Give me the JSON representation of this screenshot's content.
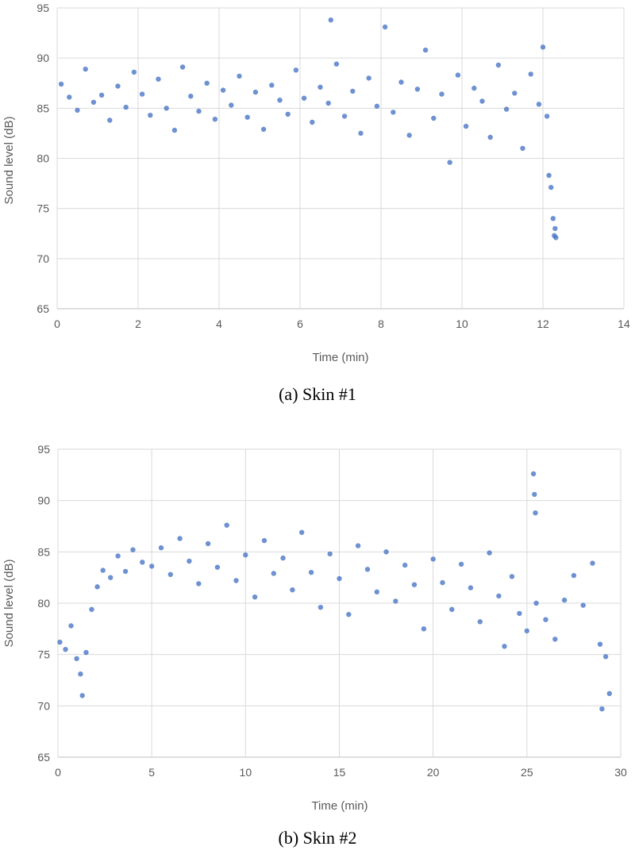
{
  "colors": {
    "series": "#4472c4",
    "grid": "#d9d9d9",
    "text": "#595959"
  },
  "chart_data": [
    {
      "type": "scatter",
      "caption": "(a)  Skin #1",
      "xlabel": "Time (min)",
      "ylabel": "Sound level (dB)",
      "xlim": [
        0,
        14
      ],
      "ylim": [
        65,
        95
      ],
      "xticks": [
        "0",
        "2",
        "4",
        "6",
        "8",
        "10",
        "12",
        "14"
      ],
      "yticks": [
        "65",
        "70",
        "75",
        "80",
        "85",
        "90",
        "95"
      ],
      "grid": true,
      "legend": "none",
      "series": [
        {
          "points": [
            [
              0.1,
              87.4
            ],
            [
              0.3,
              86.1
            ],
            [
              0.5,
              84.8
            ],
            [
              0.7,
              88.9
            ],
            [
              0.9,
              85.6
            ],
            [
              1.1,
              86.3
            ],
            [
              1.3,
              83.8
            ],
            [
              1.5,
              87.2
            ],
            [
              1.7,
              85.1
            ],
            [
              1.9,
              88.6
            ],
            [
              2.1,
              86.4
            ],
            [
              2.3,
              84.3
            ],
            [
              2.5,
              87.9
            ],
            [
              2.7,
              85.0
            ],
            [
              2.9,
              82.8
            ],
            [
              3.1,
              89.1
            ],
            [
              3.3,
              86.2
            ],
            [
              3.5,
              84.7
            ],
            [
              3.7,
              87.5
            ],
            [
              3.9,
              83.9
            ],
            [
              4.1,
              86.8
            ],
            [
              4.3,
              85.3
            ],
            [
              4.5,
              88.2
            ],
            [
              4.7,
              84.1
            ],
            [
              4.9,
              86.6
            ],
            [
              5.1,
              82.9
            ],
            [
              5.3,
              87.3
            ],
            [
              5.5,
              85.8
            ],
            [
              5.7,
              84.4
            ],
            [
              5.9,
              88.8
            ],
            [
              6.1,
              86.0
            ],
            [
              6.3,
              83.6
            ],
            [
              6.5,
              87.1
            ],
            [
              6.7,
              85.5
            ],
            [
              6.76,
              93.8
            ],
            [
              6.9,
              89.4
            ],
            [
              7.1,
              84.2
            ],
            [
              7.3,
              86.7
            ],
            [
              7.5,
              82.5
            ],
            [
              7.7,
              88.0
            ],
            [
              7.9,
              85.2
            ],
            [
              8.1,
              93.1
            ],
            [
              8.3,
              84.6
            ],
            [
              8.5,
              87.6
            ],
            [
              8.7,
              82.3
            ],
            [
              8.9,
              86.9
            ],
            [
              9.1,
              90.8
            ],
            [
              9.3,
              84.0
            ],
            [
              9.5,
              86.4
            ],
            [
              9.7,
              79.6
            ],
            [
              9.9,
              88.3
            ],
            [
              10.1,
              83.2
            ],
            [
              10.3,
              87.0
            ],
            [
              10.5,
              85.7
            ],
            [
              10.7,
              82.1
            ],
            [
              10.9,
              89.3
            ],
            [
              11.1,
              84.9
            ],
            [
              11.3,
              86.5
            ],
            [
              11.5,
              81.0
            ],
            [
              11.7,
              88.4
            ],
            [
              11.9,
              85.4
            ],
            [
              12.0,
              91.1
            ],
            [
              12.1,
              84.2
            ],
            [
              12.15,
              78.3
            ],
            [
              12.2,
              77.1
            ],
            [
              12.25,
              74.0
            ],
            [
              12.28,
              72.3
            ],
            [
              12.3,
              73.0
            ],
            [
              12.32,
              72.1
            ]
          ]
        }
      ]
    },
    {
      "type": "scatter",
      "caption": "(b)  Skin #2",
      "xlabel": "Time (min)",
      "ylabel": "Sound level (dB)",
      "xlim": [
        0,
        30
      ],
      "ylim": [
        65,
        95
      ],
      "xticks": [
        "0",
        "5",
        "10",
        "15",
        "20",
        "25",
        "30"
      ],
      "yticks": [
        "65",
        "70",
        "75",
        "80",
        "85",
        "90",
        "95"
      ],
      "grid": true,
      "legend": "none",
      "series": [
        {
          "points": [
            [
              0.1,
              76.2
            ],
            [
              0.4,
              75.5
            ],
            [
              0.7,
              77.8
            ],
            [
              1.0,
              74.6
            ],
            [
              1.2,
              73.1
            ],
            [
              1.3,
              71.0
            ],
            [
              1.5,
              75.2
            ],
            [
              1.8,
              79.4
            ],
            [
              2.1,
              81.6
            ],
            [
              2.4,
              83.2
            ],
            [
              2.8,
              82.5
            ],
            [
              3.2,
              84.6
            ],
            [
              3.6,
              83.1
            ],
            [
              4.0,
              85.2
            ],
            [
              4.5,
              84.0
            ],
            [
              5.0,
              83.6
            ],
            [
              5.5,
              85.4
            ],
            [
              6.0,
              82.8
            ],
            [
              6.5,
              86.3
            ],
            [
              7.0,
              84.1
            ],
            [
              7.5,
              81.9
            ],
            [
              8.0,
              85.8
            ],
            [
              8.5,
              83.5
            ],
            [
              9.0,
              87.6
            ],
            [
              9.5,
              82.2
            ],
            [
              10.0,
              84.7
            ],
            [
              10.5,
              80.6
            ],
            [
              11.0,
              86.1
            ],
            [
              11.5,
              82.9
            ],
            [
              12.0,
              84.4
            ],
            [
              12.5,
              81.3
            ],
            [
              13.0,
              86.9
            ],
            [
              13.5,
              83.0
            ],
            [
              14.0,
              79.6
            ],
            [
              14.5,
              84.8
            ],
            [
              15.0,
              82.4
            ],
            [
              15.5,
              78.9
            ],
            [
              16.0,
              85.6
            ],
            [
              16.5,
              83.3
            ],
            [
              17.0,
              81.1
            ],
            [
              17.5,
              85.0
            ],
            [
              18.0,
              80.2
            ],
            [
              18.5,
              83.7
            ],
            [
              19.0,
              81.8
            ],
            [
              19.5,
              77.5
            ],
            [
              20.0,
              84.3
            ],
            [
              20.5,
              82.0
            ],
            [
              21.0,
              79.4
            ],
            [
              21.5,
              83.8
            ],
            [
              22.0,
              81.5
            ],
            [
              22.5,
              78.2
            ],
            [
              23.0,
              84.9
            ],
            [
              23.5,
              80.7
            ],
            [
              23.8,
              75.8
            ],
            [
              24.2,
              82.6
            ],
            [
              24.6,
              79.0
            ],
            [
              25.0,
              77.3
            ],
            [
              25.35,
              92.6
            ],
            [
              25.4,
              90.6
            ],
            [
              25.45,
              88.8
            ],
            [
              25.5,
              80.0
            ],
            [
              26.0,
              78.4
            ],
            [
              26.5,
              76.5
            ],
            [
              27.0,
              80.3
            ],
            [
              27.5,
              82.7
            ],
            [
              28.0,
              79.8
            ],
            [
              28.5,
              83.9
            ],
            [
              28.9,
              76.0
            ],
            [
              29.0,
              69.7
            ],
            [
              29.2,
              74.8
            ],
            [
              29.4,
              71.2
            ]
          ]
        }
      ]
    }
  ]
}
